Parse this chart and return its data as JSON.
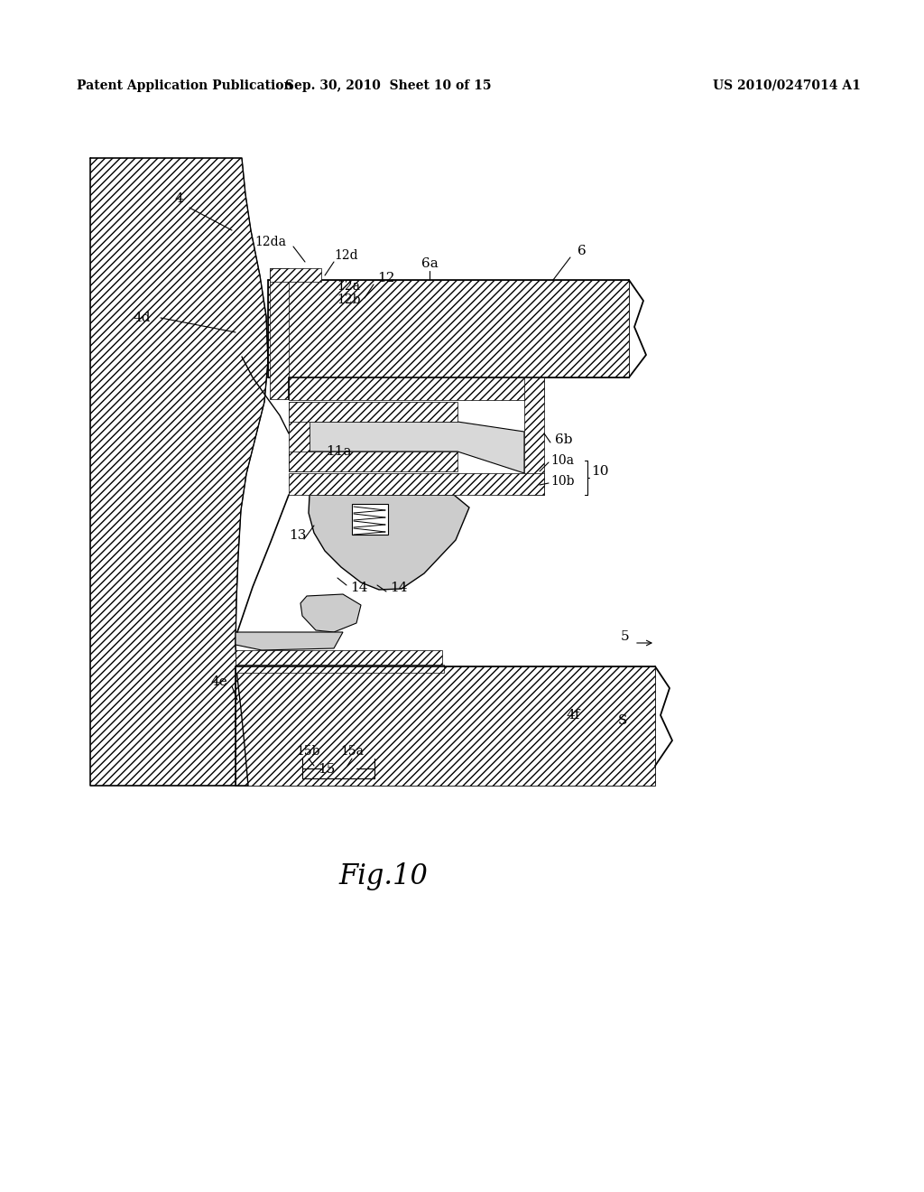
{
  "bg_color": "#ffffff",
  "title": "Fig.10",
  "header_left": "Patent Application Publication",
  "header_center": "Sep. 30, 2010  Sheet 10 of 15",
  "header_right": "US 2010/0247014 A1",
  "line_color": "#000000"
}
